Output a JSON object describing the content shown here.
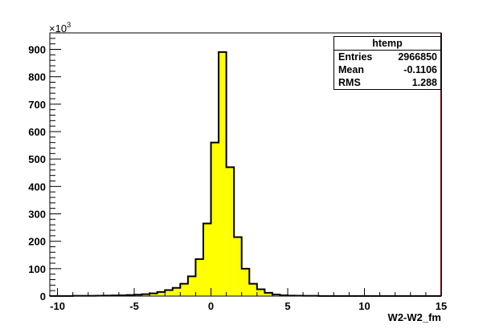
{
  "chart_data": {
    "type": "bar",
    "histogram_name": "htemp",
    "xlabel": "W2-W2_fm",
    "y_exponent_label": "×10",
    "y_exponent_power": "3",
    "xlim": [
      -10.5,
      15
    ],
    "ylim": [
      0,
      960
    ],
    "x_ticks": [
      -10,
      -5,
      0,
      5,
      10,
      15
    ],
    "y_ticks": [
      0,
      100,
      200,
      300,
      400,
      500,
      600,
      700,
      800,
      900
    ],
    "bin_width": 0.5,
    "bin_low_edges": [
      -10.5,
      -10,
      -9.5,
      -9,
      -8.5,
      -8,
      -7.5,
      -7,
      -6.5,
      -6,
      -5.5,
      -5,
      -4.5,
      -4,
      -3.5,
      -3,
      -2.5,
      -2,
      -1.5,
      -1,
      -0.5,
      0,
      0.5,
      1,
      1.5,
      2,
      2.5,
      3,
      3.5,
      4,
      4.5,
      5,
      5.5,
      6,
      6.5,
      7,
      7.5,
      8,
      8.5,
      9,
      9.5,
      10,
      10.5,
      11,
      11.5,
      12,
      12.5,
      13,
      13.5,
      14,
      14.5
    ],
    "values": [
      0.5,
      0.5,
      0.5,
      1,
      1,
      1,
      1.5,
      2,
      2.5,
      3,
      4,
      5,
      7,
      10,
      15,
      22,
      30,
      45,
      72,
      135,
      265,
      560,
      890,
      470,
      215,
      100,
      45,
      25,
      12,
      6,
      3,
      2,
      1.5,
      1,
      1,
      0.5,
      0.5,
      0.5,
      0.5,
      0.5,
      0.5,
      0.5,
      0.5,
      0.5,
      0.5,
      0.5,
      0.5,
      0.5,
      0.5,
      0.5,
      0.5
    ],
    "fill_color": "#ffff00",
    "line_color": "#000000",
    "overflow_marker_color": "#cc0000",
    "stats": {
      "title": "htemp",
      "rows": [
        {
          "key": "Entries",
          "value": "2966850"
        },
        {
          "key": "Mean",
          "value": "-0.1106"
        },
        {
          "key": "RMS",
          "value": "1.288"
        }
      ]
    }
  }
}
